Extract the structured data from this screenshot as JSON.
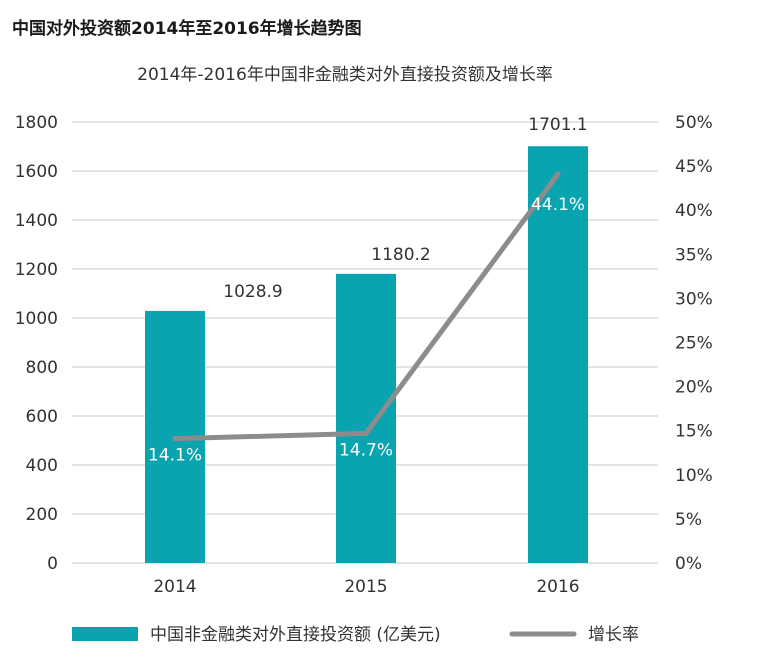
{
  "heading": "中国对外投资额2014年至2016年增长趋势图",
  "colors": {
    "bar": "#0aa4b0",
    "line": "#8c8c8c",
    "grid": "#c8c8c8",
    "text": "#333333"
  },
  "chart_data": {
    "type": "bar",
    "title": "2014年-2016年中国非金融类对外直接投资额及增长率",
    "categories": [
      "2014",
      "2015",
      "2016"
    ],
    "series": [
      {
        "name": "中国非金融类对外直接投资额 (亿美元)",
        "type": "bar",
        "axis": "left",
        "values": [
          1028.9,
          1180.2,
          1701.1
        ],
        "labels": [
          "1028.9",
          "1180.2",
          "1701.1"
        ]
      },
      {
        "name": "增长率",
        "type": "line",
        "axis": "right",
        "values": [
          14.1,
          14.7,
          44.1
        ],
        "labels": [
          "14.1%",
          "14.7%",
          "44.1%"
        ]
      }
    ],
    "ylim": [
      0,
      1800
    ],
    "yticks": [
      "0",
      "200",
      "400",
      "600",
      "800",
      "1000",
      "1200",
      "1400",
      "1600",
      "1800"
    ],
    "y2lim": [
      0,
      50
    ],
    "y2ticks": [
      "0%",
      "5%",
      "10%",
      "15%",
      "20%",
      "25%",
      "30%",
      "35%",
      "40%",
      "45%",
      "50%"
    ],
    "grid": true,
    "legend": "bottom"
  }
}
